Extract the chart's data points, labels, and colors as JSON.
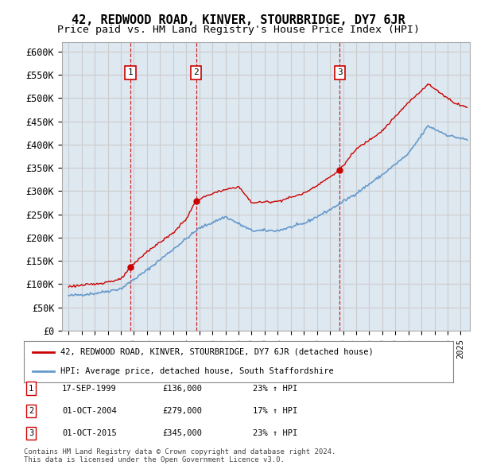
{
  "title": "42, REDWOOD ROAD, KINVER, STOURBRIDGE, DY7 6JR",
  "subtitle": "Price paid vs. HM Land Registry's House Price Index (HPI)",
  "ylim": [
    0,
    620000
  ],
  "yticks": [
    0,
    50000,
    100000,
    150000,
    200000,
    250000,
    300000,
    350000,
    400000,
    450000,
    500000,
    550000,
    600000
  ],
  "ytick_labels": [
    "£0",
    "£50K",
    "£100K",
    "£150K",
    "£200K",
    "£250K",
    "£300K",
    "£350K",
    "£400K",
    "£450K",
    "£500K",
    "£550K",
    "£600K"
  ],
  "sales": [
    {
      "date_num": 1999.72,
      "price": 136000,
      "label": "1"
    },
    {
      "date_num": 2004.75,
      "price": 279000,
      "label": "2"
    },
    {
      "date_num": 2015.75,
      "price": 345000,
      "label": "3"
    }
  ],
  "sale_lines": [
    1999.72,
    2004.75,
    2015.75
  ],
  "legend_property": "42, REDWOOD ROAD, KINVER, STOURBRIDGE, DY7 6JR (detached house)",
  "legend_hpi": "HPI: Average price, detached house, South Staffordshire",
  "table_entries": [
    {
      "num": "1",
      "date": "17-SEP-1999",
      "price": "£136,000",
      "change": "23% ↑ HPI"
    },
    {
      "num": "2",
      "date": "01-OCT-2004",
      "price": "£279,000",
      "change": "17% ↑ HPI"
    },
    {
      "num": "3",
      "date": "01-OCT-2015",
      "price": "£345,000",
      "change": "23% ↑ HPI"
    }
  ],
  "footer": "Contains HM Land Registry data © Crown copyright and database right 2024.\nThis data is licensed under the Open Government Licence v3.0.",
  "property_color": "#cc0000",
  "hpi_color": "#6699cc",
  "bg_color": "#dde8f0",
  "plot_bg": "#ffffff",
  "grid_color": "#cccccc",
  "title_fontsize": 11,
  "subtitle_fontsize": 9.5,
  "axis_fontsize": 8.5
}
